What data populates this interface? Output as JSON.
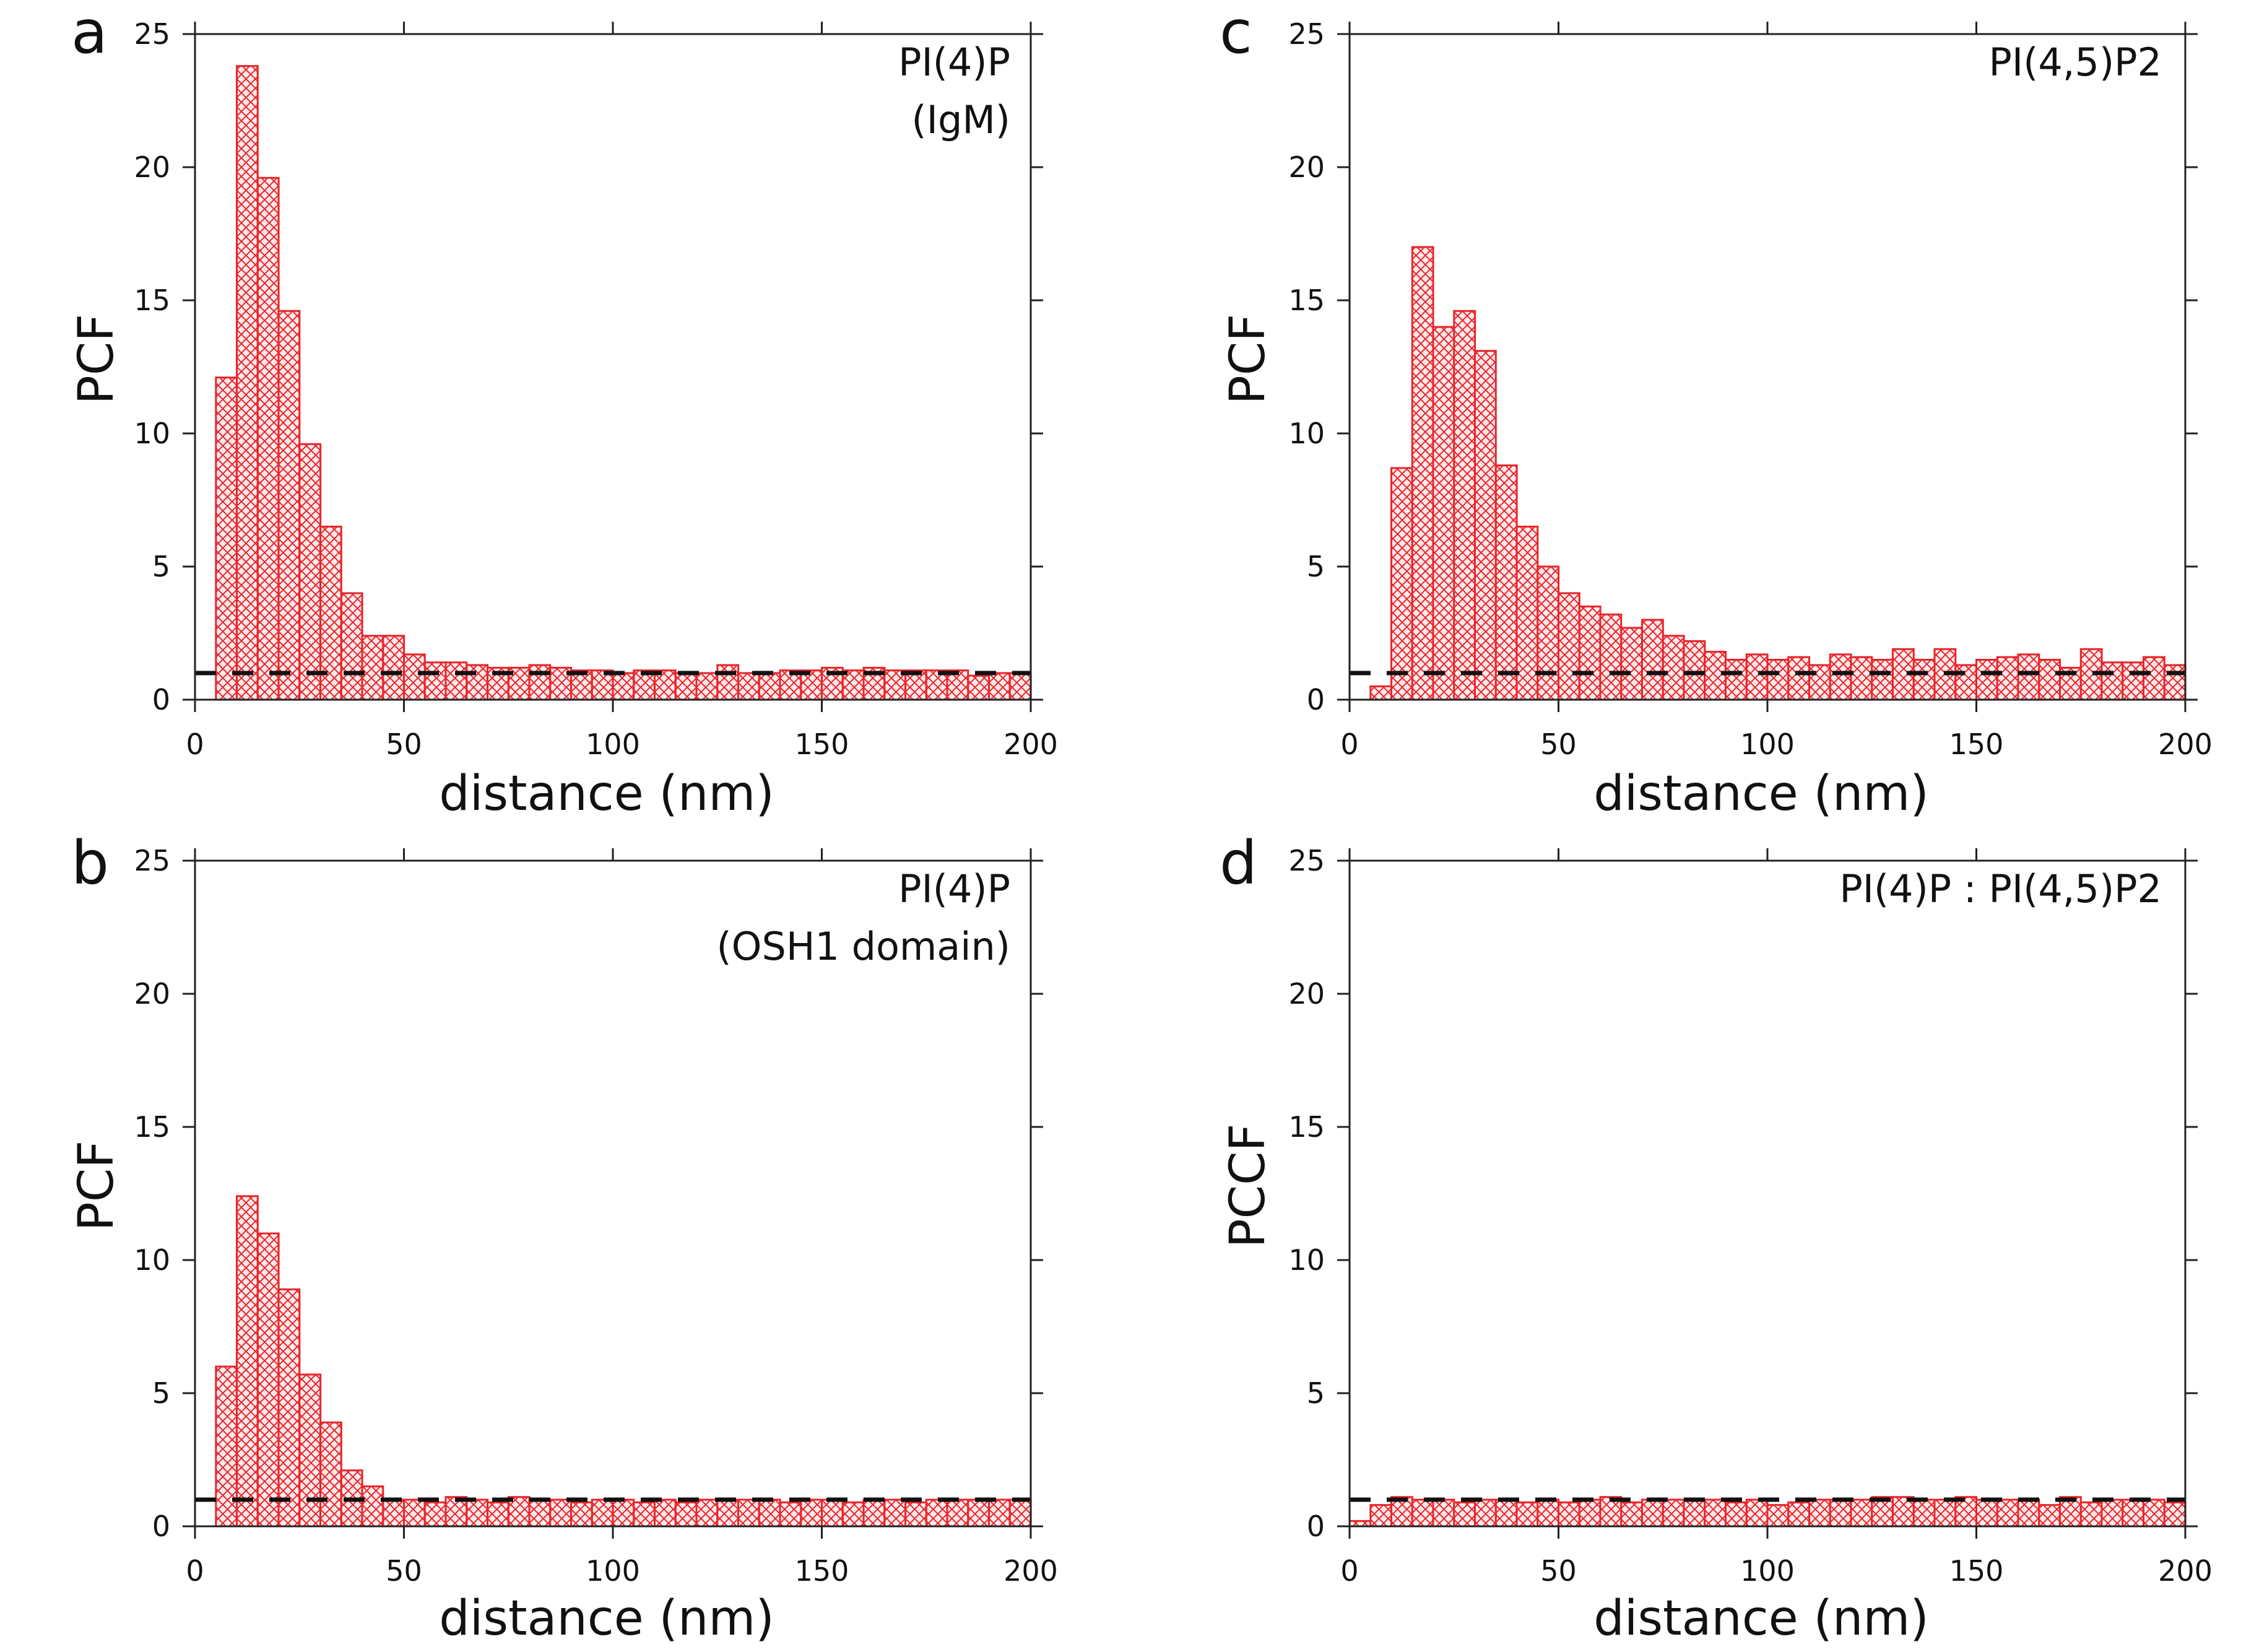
{
  "colors": {
    "bar_stroke": "#e8252a",
    "bar_hatch": "#e8252a",
    "bar_fill": "#fde9ea",
    "axis": "#222222",
    "baseline": "#111111"
  },
  "chart_data": [
    {
      "panel": "a",
      "type": "bar",
      "annotation": [
        "PI(4)P",
        "(IgM)"
      ],
      "xlabel": "distance (nm)",
      "ylabel": "PCF",
      "xlim": [
        0,
        200
      ],
      "ylim": [
        0,
        25
      ],
      "xticks": [
        0,
        50,
        100,
        150,
        200
      ],
      "yticks": [
        0,
        5,
        10,
        15,
        20,
        25
      ],
      "bin_width": 5,
      "bin_starts": [
        5,
        10,
        15,
        20,
        25,
        30,
        35,
        40,
        45,
        50,
        55,
        60,
        65,
        70,
        75,
        80,
        85,
        90,
        95,
        100,
        105,
        110,
        115,
        120,
        125,
        130,
        135,
        140,
        145,
        150,
        155,
        160,
        165,
        170,
        175,
        180,
        185,
        190,
        195
      ],
      "values": [
        12.1,
        23.8,
        19.6,
        14.6,
        9.6,
        6.5,
        4.0,
        2.4,
        2.4,
        1.7,
        1.4,
        1.4,
        1.3,
        1.2,
        1.2,
        1.3,
        1.2,
        1.1,
        1.1,
        1.0,
        1.1,
        1.1,
        1.0,
        1.0,
        1.3,
        1.0,
        1.0,
        1.1,
        1.1,
        1.2,
        1.1,
        1.2,
        1.1,
        1.1,
        1.1,
        1.1,
        0.9,
        1.0,
        1.0
      ],
      "reference_line": 1
    },
    {
      "panel": "b",
      "type": "bar",
      "annotation": [
        "PI(4)P",
        "(OSH1 domain)"
      ],
      "xlabel": "distance (nm)",
      "ylabel": "PCF",
      "xlim": [
        0,
        200
      ],
      "ylim": [
        0,
        25
      ],
      "xticks": [
        0,
        50,
        100,
        150,
        200
      ],
      "yticks": [
        0,
        5,
        10,
        15,
        20,
        25
      ],
      "bin_width": 5,
      "bin_starts": [
        5,
        10,
        15,
        20,
        25,
        30,
        35,
        40,
        45,
        50,
        55,
        60,
        65,
        70,
        75,
        80,
        85,
        90,
        95,
        100,
        105,
        110,
        115,
        120,
        125,
        130,
        135,
        140,
        145,
        150,
        155,
        160,
        165,
        170,
        175,
        180,
        185,
        190,
        195
      ],
      "values": [
        6.0,
        12.4,
        11.0,
        8.9,
        5.7,
        3.9,
        2.1,
        1.5,
        1.0,
        1.0,
        0.9,
        1.1,
        1.0,
        0.9,
        1.1,
        1.0,
        1.0,
        0.9,
        1.0,
        1.0,
        0.9,
        1.0,
        0.9,
        1.0,
        1.0,
        1.0,
        1.0,
        0.9,
        1.0,
        1.0,
        0.9,
        1.0,
        1.0,
        0.9,
        1.0,
        1.0,
        1.0,
        1.0,
        1.0
      ],
      "reference_line": 1
    },
    {
      "panel": "c",
      "type": "bar",
      "annotation": [
        "PI(4,5)P2"
      ],
      "xlabel": "distance (nm)",
      "ylabel": "PCF",
      "xlim": [
        0,
        200
      ],
      "ylim": [
        0,
        25
      ],
      "xticks": [
        0,
        50,
        100,
        150,
        200
      ],
      "yticks": [
        0,
        5,
        10,
        15,
        20,
        25
      ],
      "bin_width": 5,
      "bin_starts": [
        5,
        10,
        15,
        20,
        25,
        30,
        35,
        40,
        45,
        50,
        55,
        60,
        65,
        70,
        75,
        80,
        85,
        90,
        95,
        100,
        105,
        110,
        115,
        120,
        125,
        130,
        135,
        140,
        145,
        150,
        155,
        160,
        165,
        170,
        175,
        180,
        185,
        190,
        195
      ],
      "values": [
        0.5,
        8.7,
        17.0,
        14.0,
        14.6,
        13.1,
        8.8,
        6.5,
        5.0,
        4.0,
        3.5,
        3.2,
        2.7,
        3.0,
        2.4,
        2.2,
        1.8,
        1.5,
        1.7,
        1.5,
        1.6,
        1.3,
        1.7,
        1.6,
        1.5,
        1.9,
        1.5,
        1.9,
        1.3,
        1.5,
        1.6,
        1.7,
        1.5,
        1.2,
        1.9,
        1.4,
        1.4,
        1.6,
        1.3
      ],
      "reference_line": 1
    },
    {
      "panel": "d",
      "type": "bar",
      "annotation": [
        "PI(4)P : PI(4,5)P2"
      ],
      "xlabel": "distance (nm)",
      "ylabel": "PCCF",
      "xlim": [
        0,
        200
      ],
      "ylim": [
        0,
        25
      ],
      "xticks": [
        0,
        50,
        100,
        150,
        200
      ],
      "yticks": [
        0,
        5,
        10,
        15,
        20,
        25
      ],
      "bin_width": 5,
      "bin_starts": [
        0,
        5,
        10,
        15,
        20,
        25,
        30,
        35,
        40,
        45,
        50,
        55,
        60,
        65,
        70,
        75,
        80,
        85,
        90,
        95,
        100,
        105,
        110,
        115,
        120,
        125,
        130,
        135,
        140,
        145,
        150,
        155,
        160,
        165,
        170,
        175,
        180,
        185,
        190,
        195
      ],
      "values": [
        0.2,
        0.8,
        1.1,
        1.0,
        1.0,
        0.9,
        1.0,
        1.0,
        0.9,
        1.0,
        0.9,
        1.0,
        1.1,
        0.9,
        1.0,
        1.0,
        1.0,
        1.0,
        0.9,
        1.0,
        0.8,
        0.9,
        1.0,
        1.0,
        1.0,
        1.1,
        1.1,
        1.0,
        1.0,
        1.1,
        1.0,
        1.0,
        1.0,
        0.8,
        1.1,
        0.9,
        1.0,
        1.0,
        1.0,
        0.9
      ],
      "reference_line": 1
    }
  ]
}
